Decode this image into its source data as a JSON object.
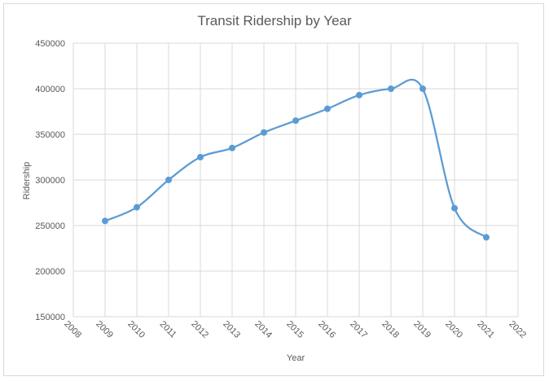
{
  "chart_data": {
    "type": "scatter",
    "title": "Transit Ridership by Year",
    "xlabel": "Year",
    "ylabel": "Ridership",
    "xlim": [
      2008,
      2022
    ],
    "ylim": [
      150000,
      450000
    ],
    "x_ticks": [
      2008,
      2009,
      2010,
      2011,
      2012,
      2013,
      2014,
      2015,
      2016,
      2017,
      2018,
      2019,
      2020,
      2021,
      2022
    ],
    "y_ticks": [
      150000,
      200000,
      250000,
      300000,
      350000,
      400000,
      450000
    ],
    "grid": true,
    "smooth_line": true,
    "series": [
      {
        "x": [
          2009,
          2010,
          2011,
          2012,
          2013,
          2014,
          2015,
          2016,
          2017,
          2018,
          2019,
          2020,
          2021
        ],
        "y": [
          255000,
          270000,
          300000,
          325000,
          335000,
          352000,
          365000,
          378000,
          393000,
          400000,
          400000,
          269000,
          237000
        ],
        "color": "#5b9bd5"
      }
    ]
  }
}
